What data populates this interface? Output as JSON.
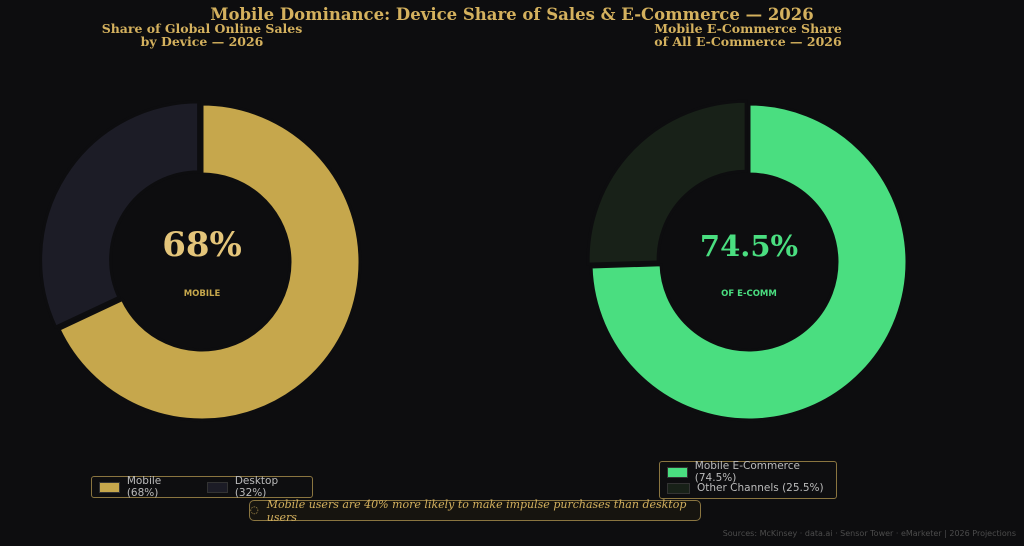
{
  "title": "Mobile Dominance: Device Share of Sales & E-Commerce — 2026",
  "chart_data": [
    {
      "type": "pie",
      "title_lines": [
        "Share of Global Online Sales",
        "by Device — 2026"
      ],
      "center_value": "68%",
      "center_label": "MOBILE",
      "slices": [
        {
          "label": "Mobile (68%)",
          "value": 68,
          "color": "#c6a74c"
        },
        {
          "label": "Desktop (32%)",
          "value": 32,
          "color": "#1c1c26"
        }
      ],
      "accent": "#e4c57a",
      "legend_placement": "lower-center"
    },
    {
      "type": "pie",
      "title_lines": [
        "Mobile E-Commerce Share",
        "of All E-Commerce — 2026"
      ],
      "center_value": "74.5%",
      "center_label": "OF E-COMM",
      "slices": [
        {
          "label": "Mobile E-Commerce (74.5%)",
          "value": 74.5,
          "color": "#4ade80"
        },
        {
          "label": "Other Channels (25.5%)",
          "value": 25.5,
          "color": "#182118"
        }
      ],
      "accent": "#4ade80",
      "legend_placement": "lower-center"
    }
  ],
  "callout": {
    "icon": "lightbulb-icon",
    "text": "Mobile users are 40% more likely to make impulse purchases than desktop users"
  },
  "sources": "Sources: McKinsey · data.ai · Sensor Tower · eMarketer  |  2026 Projections"
}
